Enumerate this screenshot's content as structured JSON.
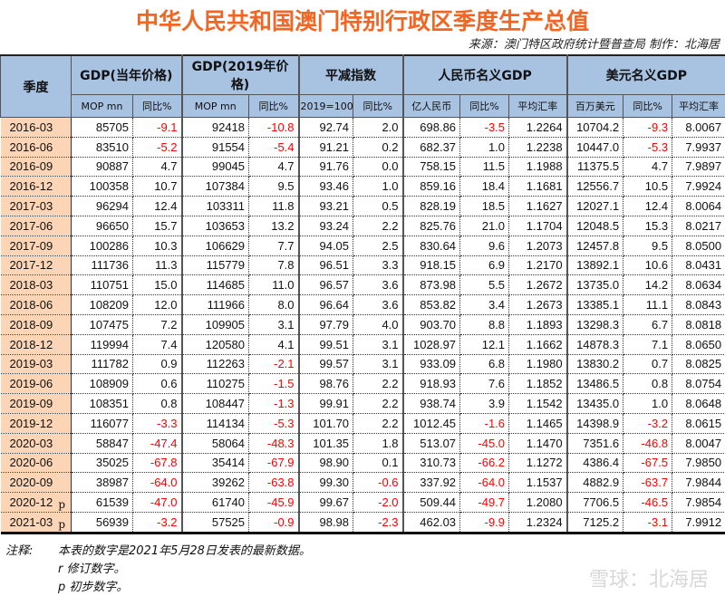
{
  "title": "中华人民共和国澳门特别行政区季度生产总值",
  "source": "来源：澳门特区政府统计暨普查局  制作：北海居",
  "header": {
    "quarter": "季度",
    "groups": [
      "GDP(当年价格)",
      "GDP(2019年价格)",
      "平减指数",
      "人民币名义GDP",
      "美元名义GDP"
    ],
    "sub": [
      "MOP mn",
      "同比%",
      "MOP mn",
      "同比%",
      "2019=100",
      "同比%",
      "亿人民币",
      "同比%",
      "平均汇率",
      "百万美元",
      "同比%",
      "平均汇率"
    ]
  },
  "rows": [
    {
      "q": "2016-03",
      "m": "",
      "v": [
        "85705",
        "-9.1",
        "92418",
        "-10.8",
        "92.74",
        "2.0",
        "698.86",
        "-3.5",
        "1.2264",
        "10704.2",
        "-9.3",
        "8.0067"
      ]
    },
    {
      "q": "2016-06",
      "m": "",
      "v": [
        "83510",
        "-5.2",
        "91554",
        "-5.4",
        "91.21",
        "0.2",
        "682.37",
        "1.0",
        "1.2238",
        "10447.0",
        "-5.3",
        "7.9937"
      ]
    },
    {
      "q": "2016-09",
      "m": "",
      "v": [
        "90887",
        "4.7",
        "99045",
        "4.7",
        "91.76",
        "0.0",
        "758.15",
        "11.5",
        "1.1988",
        "11375.5",
        "4.7",
        "7.9897"
      ]
    },
    {
      "q": "2016-12",
      "m": "",
      "v": [
        "100358",
        "10.7",
        "107384",
        "9.5",
        "93.46",
        "1.0",
        "859.16",
        "18.4",
        "1.1681",
        "12556.7",
        "10.5",
        "7.9924"
      ]
    },
    {
      "q": "2017-03",
      "m": "",
      "v": [
        "96294",
        "12.4",
        "103311",
        "11.8",
        "93.21",
        "0.5",
        "828.19",
        "18.5",
        "1.1627",
        "12027.1",
        "12.4",
        "8.0064"
      ]
    },
    {
      "q": "2017-06",
      "m": "",
      "v": [
        "96650",
        "15.7",
        "103653",
        "13.2",
        "93.24",
        "2.2",
        "825.76",
        "21.0",
        "1.1704",
        "12048.5",
        "15.3",
        "8.0217"
      ]
    },
    {
      "q": "2017-09",
      "m": "",
      "v": [
        "100286",
        "10.3",
        "106629",
        "7.7",
        "94.05",
        "2.5",
        "830.64",
        "9.6",
        "1.2073",
        "12457.8",
        "9.5",
        "8.0500"
      ]
    },
    {
      "q": "2017-12",
      "m": "",
      "v": [
        "111736",
        "11.3",
        "115779",
        "7.8",
        "96.51",
        "3.3",
        "918.15",
        "6.9",
        "1.2170",
        "13892.1",
        "10.6",
        "8.0431"
      ]
    },
    {
      "q": "2018-03",
      "m": "",
      "v": [
        "110751",
        "15.0",
        "114685",
        "11.0",
        "96.57",
        "3.6",
        "873.98",
        "5.5",
        "1.2672",
        "13735.0",
        "14.2",
        "8.0634"
      ]
    },
    {
      "q": "2018-06",
      "m": "",
      "v": [
        "108209",
        "12.0",
        "111966",
        "8.0",
        "96.64",
        "3.6",
        "853.82",
        "3.4",
        "1.2673",
        "13385.1",
        "11.1",
        "8.0843"
      ]
    },
    {
      "q": "2018-09",
      "m": "",
      "v": [
        "107475",
        "7.2",
        "109905",
        "3.1",
        "97.79",
        "4.0",
        "903.70",
        "8.8",
        "1.1893",
        "13298.3",
        "6.7",
        "8.0818"
      ]
    },
    {
      "q": "2018-12",
      "m": "",
      "v": [
        "119994",
        "7.4",
        "120580",
        "4.1",
        "99.51",
        "3.1",
        "1028.97",
        "12.1",
        "1.1662",
        "14878.3",
        "7.1",
        "8.0650"
      ]
    },
    {
      "q": "2019-03",
      "m": "",
      "v": [
        "111782",
        "0.9",
        "112263",
        "-2.1",
        "99.57",
        "3.1",
        "933.09",
        "6.8",
        "1.1980",
        "13830.2",
        "0.7",
        "8.0825"
      ]
    },
    {
      "q": "2019-06",
      "m": "",
      "v": [
        "108909",
        "0.6",
        "110275",
        "-1.5",
        "98.76",
        "2.2",
        "918.93",
        "7.6",
        "1.1852",
        "13486.5",
        "0.8",
        "8.0754"
      ]
    },
    {
      "q": "2019-09",
      "m": "",
      "v": [
        "108351",
        "0.8",
        "108447",
        "-1.3",
        "99.91",
        "2.2",
        "938.74",
        "3.9",
        "1.1542",
        "13435.0",
        "1.0",
        "8.0648"
      ]
    },
    {
      "q": "2019-12",
      "m": "",
      "v": [
        "116077",
        "-3.3",
        "114134",
        "-5.3",
        "101.70",
        "2.2",
        "1012.45",
        "-1.6",
        "1.1465",
        "14398.9",
        "-3.2",
        "8.0615"
      ]
    },
    {
      "q": "2020-03",
      "m": "",
      "v": [
        "58847",
        "-47.4",
        "58064",
        "-48.3",
        "101.35",
        "1.8",
        "513.07",
        "-45.0",
        "1.1470",
        "7351.6",
        "-46.8",
        "8.0047"
      ]
    },
    {
      "q": "2020-06",
      "m": "",
      "v": [
        "35025",
        "-67.8",
        "35414",
        "-67.9",
        "98.90",
        "0.1",
        "310.73",
        "-66.2",
        "1.1272",
        "4386.4",
        "-67.5",
        "7.9850"
      ]
    },
    {
      "q": "2020-09",
      "m": "",
      "v": [
        "38987",
        "-64.0",
        "39262",
        "-63.8",
        "99.30",
        "-0.6",
        "337.92",
        "-64.0",
        "1.1537",
        "4882.9",
        "-63.7",
        "7.9844"
      ]
    },
    {
      "q": "2020-12",
      "m": "p",
      "v": [
        "61539",
        "-47.0",
        "61740",
        "-45.9",
        "99.67",
        "-2.0",
        "509.44",
        "-49.7",
        "1.2080",
        "7706.5",
        "-46.5",
        "7.9854"
      ]
    },
    {
      "q": "2021-03",
      "m": "p",
      "v": [
        "56939",
        "-3.2",
        "57525",
        "-0.9",
        "98.98",
        "-2.3",
        "462.03",
        "-9.9",
        "1.2324",
        "7125.2",
        "-3.1",
        "7.9912"
      ]
    }
  ],
  "notes": {
    "label": "注释:",
    "line1": "本表的数字是2021年5月28日发表的最新数据。",
    "line2": "r  修订数字。",
    "line3": "p  初步数字。"
  },
  "watermark": "雪球：北海居",
  "colors": {
    "title": "#f26522",
    "header": "#a8c2e2",
    "quarter": "#fbd5b5",
    "negative": "#ff0000"
  }
}
